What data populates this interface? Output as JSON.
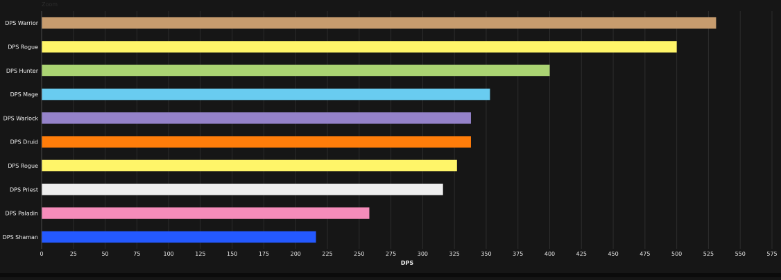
{
  "corner_text": "Zoom",
  "chart_data": {
    "type": "bar",
    "orientation": "horizontal",
    "title": "",
    "xlabel": "DPS",
    "ylabel": "",
    "xlim": [
      0,
      575
    ],
    "xticks": [
      0,
      25,
      50,
      75,
      100,
      125,
      150,
      175,
      200,
      225,
      250,
      275,
      300,
      325,
      350,
      375,
      400,
      425,
      450,
      475,
      500,
      525,
      550,
      575
    ],
    "grid": true,
    "categories": [
      "DPS Warrior",
      "DPS Rogue",
      "DPS Hunter",
      "DPS Mage",
      "DPS Warlock",
      "DPS Druid",
      "DPS Rogue",
      "DPS Priest",
      "DPS Paladin",
      "DPS Shaman"
    ],
    "values": [
      531,
      500,
      400,
      353,
      338,
      338,
      327,
      316,
      258,
      216
    ],
    "colors": [
      "#C79C6E",
      "#FFF569",
      "#ABD473",
      "#69CCF0",
      "#9482C9",
      "#FF7D0A",
      "#FFF569",
      "#EEEEEE",
      "#F58CBA",
      "#2459FF"
    ]
  }
}
